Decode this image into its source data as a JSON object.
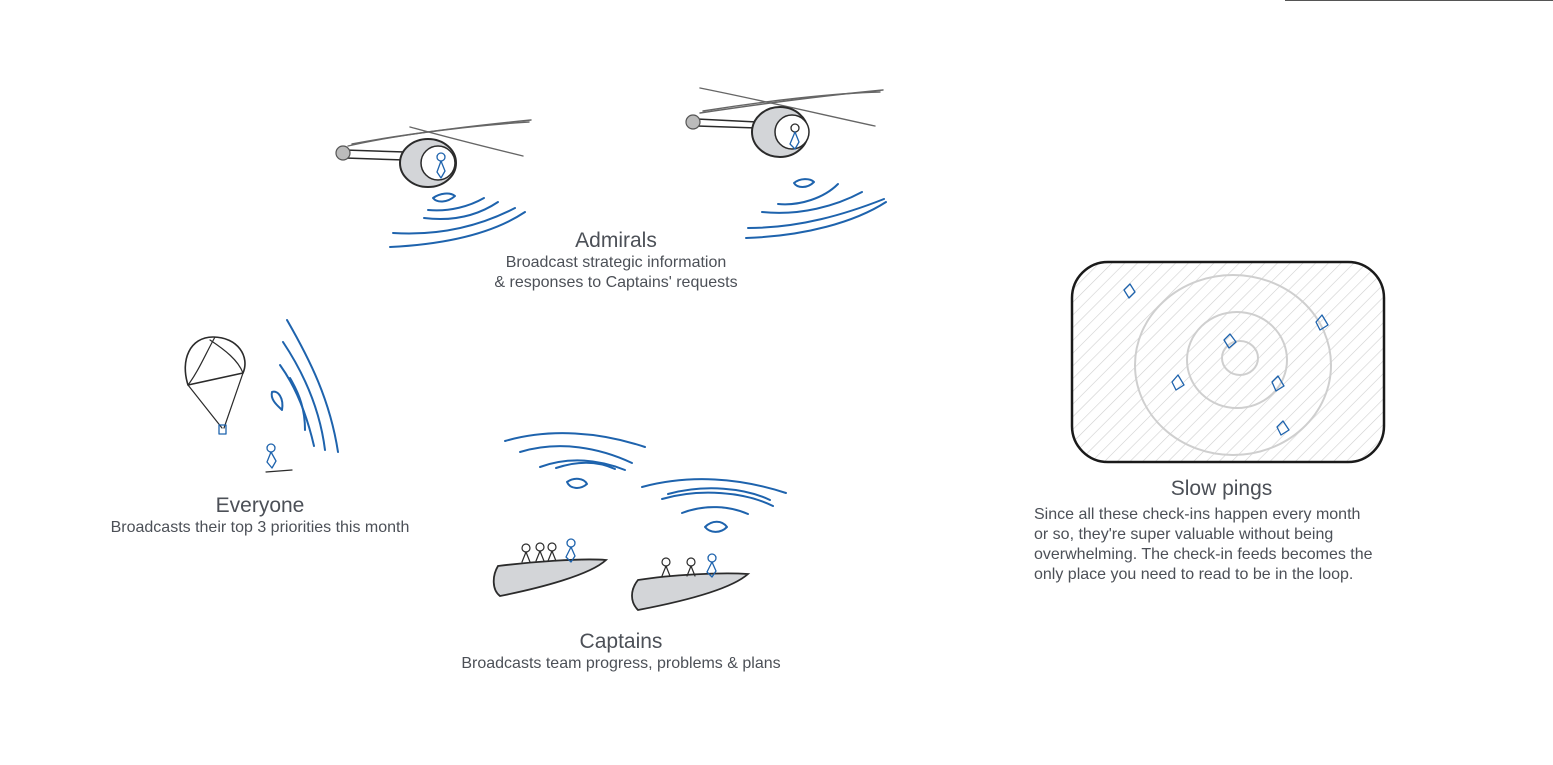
{
  "admirals": {
    "title": "Admirals",
    "line1": "Broadcast strategic information",
    "line2": "& responses to Captains' requests"
  },
  "everyone": {
    "title": "Everyone",
    "line1": "Broadcasts their  top 3 priorities this month"
  },
  "captains": {
    "title": "Captains",
    "line1": "Broadcasts team progress, problems & plans"
  },
  "slow_pings": {
    "title": "Slow pings",
    "line1": "Since all these check-ins happen every month",
    "line2": "or so, they're super valuable without being",
    "line3": "overwhelming.  The check-in feeds becomes the",
    "line4": "only place you need to read to be in the loop."
  },
  "colors": {
    "ink_blue": "#1e63ad",
    "ink_dark": "#2b2b2b",
    "text": "#4c5057",
    "hull_fill": "#d3d5d8",
    "radar_hatch": "#cfcfcf"
  },
  "icons": [
    "helicopter-icon",
    "parachute-icon",
    "boat-icon",
    "radar-icon",
    "person-icon",
    "signal-waves-icon"
  ]
}
